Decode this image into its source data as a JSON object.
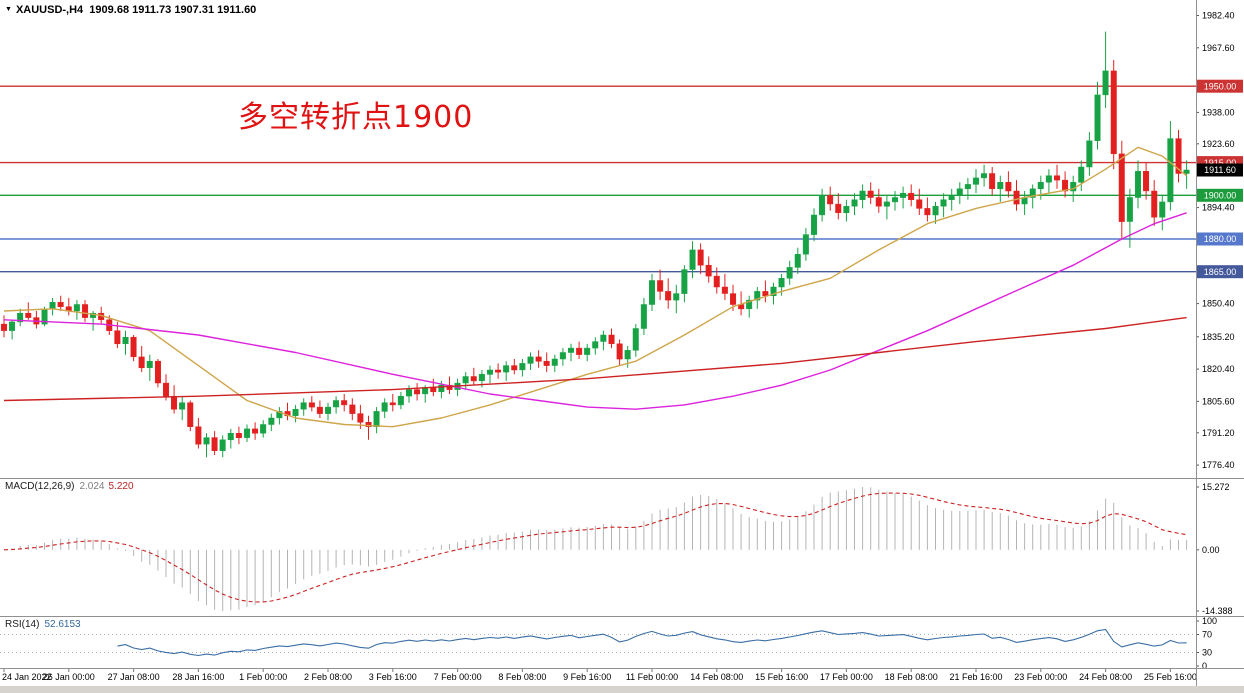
{
  "window": {
    "symbol_period": "XAUUSD-,H4",
    "ohlc": "1909.68 1911.73 1907.31 1911.60",
    "menu_icon": "▼"
  },
  "annotation": {
    "text": "多空转折点1900",
    "color": "#e01212"
  },
  "chart_data": {
    "type": "candlestick",
    "title": "XAUUSD-,H4",
    "ohlc_display": "1909.68 1911.73 1907.31 1911.60",
    "colors": {
      "up": "#17a345",
      "down": "#e32020",
      "hist": "#b4b4b4",
      "separator": "#909090"
    },
    "price_axis": {
      "min": 1770.5,
      "max": 1989.5,
      "ticks": [
        "1982.40",
        "1967.60",
        "1938.00",
        "1923.60",
        "1894.40",
        "1850.40",
        "1835.20",
        "1820.40",
        "1805.60",
        "1791.20",
        "1776.40"
      ]
    },
    "levels": [
      {
        "label": "1950.00",
        "price": 1950.0,
        "color": "#cc3333"
      },
      {
        "label": "1915.00",
        "price": 1915.0,
        "color": "#cc3333"
      },
      {
        "label": "1900.00",
        "price": 1900.0,
        "color": "#1c9c3c"
      },
      {
        "label": "1880.00",
        "price": 1880.0,
        "color": "#5577cc"
      },
      {
        "label": "1865.00",
        "price": 1865.0,
        "color": "#44589c"
      }
    ],
    "current_price": {
      "label": "1911.60",
      "price": 1911.6,
      "color": "#000000"
    },
    "x_labels": [
      "24 Jan 2022",
      "26 Jan 00:00",
      "27 Jan 08:00",
      "28 Jan 16:00",
      "1 Feb 00:00",
      "2 Feb 08:00",
      "3 Feb 16:00",
      "7 Feb 00:00",
      "8 Feb 08:00",
      "9 Feb 16:00",
      "11 Feb 00:00",
      "14 Feb 08:00",
      "15 Feb 16:00",
      "17 Feb 00:00",
      "18 Feb 08:00",
      "21 Feb 16:00",
      "23 Feb 00:00",
      "24 Feb 08:00",
      "25 Feb 16:00"
    ],
    "candles": [
      [
        1841,
        1845,
        1835,
        1838
      ],
      [
        1838,
        1843,
        1834,
        1842
      ],
      [
        1842,
        1848,
        1840,
        1846
      ],
      [
        1846,
        1851,
        1843,
        1844
      ],
      [
        1844,
        1847,
        1839,
        1841
      ],
      [
        1841,
        1849,
        1840,
        1848
      ],
      [
        1848,
        1853,
        1845,
        1851
      ],
      [
        1851,
        1854,
        1847,
        1849
      ],
      [
        1849,
        1853,
        1845,
        1847
      ],
      [
        1847,
        1852,
        1843,
        1850
      ],
      [
        1850,
        1852,
        1842,
        1844
      ],
      [
        1844,
        1847,
        1838,
        1846
      ],
      [
        1846,
        1849,
        1841,
        1843
      ],
      [
        1843,
        1845,
        1836,
        1838
      ],
      [
        1838,
        1842,
        1830,
        1832
      ],
      [
        1832,
        1838,
        1827,
        1835
      ],
      [
        1835,
        1836,
        1824,
        1826
      ],
      [
        1826,
        1831,
        1819,
        1821
      ],
      [
        1821,
        1827,
        1815,
        1824
      ],
      [
        1824,
        1825,
        1812,
        1814
      ],
      [
        1814,
        1818,
        1806,
        1808
      ],
      [
        1808,
        1813,
        1800,
        1802
      ],
      [
        1802,
        1808,
        1797,
        1805
      ],
      [
        1805,
        1806,
        1792,
        1794
      ],
      [
        1794,
        1798,
        1784,
        1786
      ],
      [
        1786,
        1791,
        1780,
        1789
      ],
      [
        1789,
        1792,
        1781,
        1783
      ],
      [
        1783,
        1790,
        1780,
        1788
      ],
      [
        1788,
        1793,
        1784,
        1791
      ],
      [
        1791,
        1794,
        1786,
        1789
      ],
      [
        1789,
        1795,
        1787,
        1793
      ],
      [
        1793,
        1796,
        1788,
        1791
      ],
      [
        1791,
        1797,
        1789,
        1795
      ],
      [
        1795,
        1800,
        1792,
        1798
      ],
      [
        1798,
        1803,
        1795,
        1801
      ],
      [
        1801,
        1805,
        1797,
        1799
      ],
      [
        1799,
        1804,
        1796,
        1802
      ],
      [
        1802,
        1807,
        1799,
        1805
      ],
      [
        1805,
        1808,
        1801,
        1803
      ],
      [
        1803,
        1806,
        1798,
        1800
      ],
      [
        1800,
        1805,
        1797,
        1803
      ],
      [
        1803,
        1808,
        1800,
        1806
      ],
      [
        1806,
        1809,
        1801,
        1804
      ],
      [
        1804,
        1807,
        1797,
        1800
      ],
      [
        1800,
        1804,
        1793,
        1796
      ],
      [
        1796,
        1799,
        1788,
        1794
      ],
      [
        1794,
        1803,
        1791,
        1801
      ],
      [
        1801,
        1807,
        1798,
        1805
      ],
      [
        1805,
        1809,
        1801,
        1804
      ],
      [
        1804,
        1810,
        1802,
        1808
      ],
      [
        1808,
        1813,
        1805,
        1811
      ],
      [
        1811,
        1814,
        1806,
        1809
      ],
      [
        1809,
        1813,
        1805,
        1812
      ],
      [
        1812,
        1816,
        1808,
        1810
      ],
      [
        1810,
        1815,
        1807,
        1813
      ],
      [
        1813,
        1817,
        1809,
        1811
      ],
      [
        1811,
        1816,
        1808,
        1814
      ],
      [
        1814,
        1819,
        1811,
        1817
      ],
      [
        1817,
        1821,
        1813,
        1815
      ],
      [
        1815,
        1820,
        1812,
        1818
      ],
      [
        1818,
        1822,
        1814,
        1820
      ],
      [
        1820,
        1823,
        1816,
        1819
      ],
      [
        1819,
        1824,
        1815,
        1822
      ],
      [
        1822,
        1825,
        1818,
        1820
      ],
      [
        1820,
        1825,
        1817,
        1823
      ],
      [
        1823,
        1828,
        1820,
        1826
      ],
      [
        1826,
        1829,
        1821,
        1824
      ],
      [
        1824,
        1828,
        1819,
        1822
      ],
      [
        1822,
        1827,
        1819,
        1825
      ],
      [
        1825,
        1830,
        1822,
        1828
      ],
      [
        1828,
        1832,
        1824,
        1830
      ],
      [
        1830,
        1833,
        1825,
        1827
      ],
      [
        1827,
        1832,
        1824,
        1830
      ],
      [
        1830,
        1835,
        1827,
        1833
      ],
      [
        1833,
        1838,
        1829,
        1836
      ],
      [
        1836,
        1839,
        1830,
        1832
      ],
      [
        1832,
        1834,
        1822,
        1825
      ],
      [
        1825,
        1831,
        1821,
        1829
      ],
      [
        1829,
        1841,
        1826,
        1839
      ],
      [
        1839,
        1853,
        1836,
        1850
      ],
      [
        1850,
        1864,
        1847,
        1861
      ],
      [
        1861,
        1866,
        1852,
        1856
      ],
      [
        1856,
        1862,
        1848,
        1852
      ],
      [
        1852,
        1859,
        1846,
        1855
      ],
      [
        1855,
        1868,
        1851,
        1866
      ],
      [
        1866,
        1879,
        1862,
        1875
      ],
      [
        1875,
        1878,
        1864,
        1868
      ],
      [
        1868,
        1872,
        1860,
        1863
      ],
      [
        1863,
        1867,
        1855,
        1858
      ],
      [
        1858,
        1864,
        1852,
        1855
      ],
      [
        1855,
        1859,
        1847,
        1850
      ],
      [
        1850,
        1856,
        1845,
        1848
      ],
      [
        1848,
        1854,
        1844,
        1852
      ],
      [
        1852,
        1858,
        1848,
        1856
      ],
      [
        1856,
        1861,
        1851,
        1854
      ],
      [
        1854,
        1860,
        1850,
        1858
      ],
      [
        1858,
        1864,
        1854,
        1862
      ],
      [
        1862,
        1870,
        1859,
        1867
      ],
      [
        1867,
        1876,
        1864,
        1873
      ],
      [
        1873,
        1885,
        1870,
        1882
      ],
      [
        1882,
        1894,
        1879,
        1891
      ],
      [
        1891,
        1903,
        1888,
        1900
      ],
      [
        1900,
        1904,
        1893,
        1896
      ],
      [
        1896,
        1901,
        1889,
        1892
      ],
      [
        1892,
        1898,
        1888,
        1895
      ],
      [
        1895,
        1901,
        1891,
        1898
      ],
      [
        1898,
        1905,
        1894,
        1902
      ],
      [
        1902,
        1906,
        1896,
        1899
      ],
      [
        1899,
        1903,
        1892,
        1895
      ],
      [
        1895,
        1900,
        1889,
        1897
      ],
      [
        1897,
        1902,
        1893,
        1899
      ],
      [
        1899,
        1904,
        1894,
        1901
      ],
      [
        1901,
        1905,
        1895,
        1898
      ],
      [
        1898,
        1903,
        1891,
        1894
      ],
      [
        1894,
        1899,
        1888,
        1891
      ],
      [
        1891,
        1897,
        1887,
        1895
      ],
      [
        1895,
        1901,
        1890,
        1898
      ],
      [
        1898,
        1903,
        1893,
        1900
      ],
      [
        1900,
        1906,
        1896,
        1903
      ],
      [
        1903,
        1908,
        1898,
        1905
      ],
      [
        1905,
        1912,
        1901,
        1908
      ],
      [
        1908,
        1914,
        1904,
        1910
      ],
      [
        1910,
        1913,
        1900,
        1903
      ],
      [
        1903,
        1909,
        1897,
        1906
      ],
      [
        1906,
        1911,
        1899,
        1902
      ],
      [
        1902,
        1907,
        1893,
        1896
      ],
      [
        1896,
        1902,
        1891,
        1899
      ],
      [
        1899,
        1905,
        1894,
        1903
      ],
      [
        1903,
        1909,
        1898,
        1906
      ],
      [
        1906,
        1912,
        1901,
        1909
      ],
      [
        1909,
        1914,
        1903,
        1907
      ],
      [
        1907,
        1911,
        1899,
        1902
      ],
      [
        1902,
        1909,
        1897,
        1906
      ],
      [
        1906,
        1916,
        1902,
        1913
      ],
      [
        1913,
        1929,
        1909,
        1925
      ],
      [
        1925,
        1952,
        1921,
        1946
      ],
      [
        1946,
        1975,
        1940,
        1957
      ],
      [
        1957,
        1962,
        1912,
        1919
      ],
      [
        1919,
        1925,
        1880,
        1888
      ],
      [
        1888,
        1903,
        1876,
        1899
      ],
      [
        1899,
        1916,
        1894,
        1911
      ],
      [
        1911,
        1915,
        1898,
        1902
      ],
      [
        1902,
        1907,
        1886,
        1890
      ],
      [
        1890,
        1900,
        1884,
        1897
      ],
      [
        1897,
        1934,
        1893,
        1926
      ],
      [
        1926,
        1930,
        1906,
        1910
      ],
      [
        1910,
        1916,
        1903,
        1911.6
      ]
    ],
    "ma_lines": [
      {
        "name": "ma-fast-line",
        "color": "#cfa54a",
        "points": [
          [
            0,
            1847
          ],
          [
            6,
            1848
          ],
          [
            12,
            1845
          ],
          [
            18,
            1838
          ],
          [
            24,
            1822
          ],
          [
            30,
            1806
          ],
          [
            36,
            1798
          ],
          [
            42,
            1795
          ],
          [
            48,
            1794
          ],
          [
            54,
            1798
          ],
          [
            60,
            1804
          ],
          [
            66,
            1811
          ],
          [
            72,
            1818
          ],
          [
            78,
            1824
          ],
          [
            84,
            1836
          ],
          [
            90,
            1849
          ],
          [
            96,
            1856
          ],
          [
            102,
            1862
          ],
          [
            108,
            1875
          ],
          [
            114,
            1887
          ],
          [
            120,
            1894
          ],
          [
            126,
            1899
          ],
          [
            132,
            1903
          ],
          [
            136,
            1912
          ],
          [
            140,
            1922
          ],
          [
            143,
            1918
          ],
          [
            146,
            1909
          ]
        ]
      },
      {
        "name": "ma-medium-line",
        "color": "#dd22dd",
        "points": [
          [
            0,
            1843
          ],
          [
            12,
            1841
          ],
          [
            24,
            1836
          ],
          [
            36,
            1828
          ],
          [
            48,
            1818
          ],
          [
            60,
            1809
          ],
          [
            66,
            1806
          ],
          [
            72,
            1803
          ],
          [
            78,
            1802
          ],
          [
            84,
            1804
          ],
          [
            90,
            1808
          ],
          [
            96,
            1813
          ],
          [
            102,
            1820
          ],
          [
            108,
            1829
          ],
          [
            114,
            1838
          ],
          [
            120,
            1848
          ],
          [
            126,
            1858
          ],
          [
            132,
            1868
          ],
          [
            138,
            1880
          ],
          [
            142,
            1887
          ],
          [
            146,
            1892
          ]
        ]
      },
      {
        "name": "ma-slow-line",
        "color": "#cc2222",
        "points": [
          [
            0,
            1806
          ],
          [
            24,
            1808
          ],
          [
            48,
            1811
          ],
          [
            72,
            1816
          ],
          [
            96,
            1823
          ],
          [
            120,
            1833
          ],
          [
            136,
            1839
          ],
          [
            146,
            1844
          ]
        ]
      }
    ],
    "indicators": {
      "macd": {
        "label": "MACD(12,26,9)",
        "value_main": "2.024",
        "value_signal": "5.220",
        "axis": [
          "15.272",
          "0.00",
          "-14.388"
        ],
        "fast": 12,
        "slow": 26,
        "signal": 9,
        "hist_color": "#b4b4b4",
        "signal_color": "#cc2222"
      },
      "rsi": {
        "label": "RSI(14)",
        "value": "52.6153",
        "period": 14,
        "axis": [
          "100",
          "70",
          "30",
          "0"
        ],
        "levels": [
          70,
          30
        ],
        "color": "#3a6ea5"
      }
    }
  }
}
